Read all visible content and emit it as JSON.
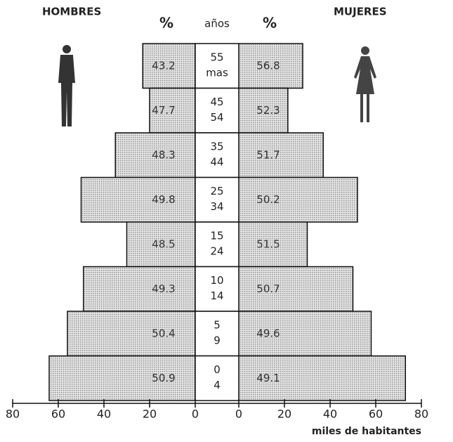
{
  "chart_data": {
    "type": "pyramid",
    "left_title": "HOMBRES",
    "right_title": "MUJERES",
    "percent_header_left": "%",
    "percent_header_right": "%",
    "age_header": "años",
    "xlabel": "miles de habitantes",
    "categories": [
      [
        "55",
        "mas"
      ],
      [
        "45",
        "54"
      ],
      [
        "35",
        "44"
      ],
      [
        "25",
        "34"
      ],
      [
        "15",
        "24"
      ],
      [
        "10",
        "14"
      ],
      [
        "5",
        "9"
      ],
      [
        "0",
        "4"
      ]
    ],
    "series": [
      {
        "name": "HOMBRES",
        "side": "left",
        "color": "#c8c8c8",
        "values": [
          23,
          20,
          35,
          50,
          30,
          49,
          56,
          64
        ],
        "percent": [
          43.2,
          47.7,
          48.3,
          49.8,
          48.5,
          49.3,
          50.4,
          50.9
        ]
      },
      {
        "name": "MUJERES",
        "side": "right",
        "color": "#c8c8c8",
        "values": [
          28,
          21.5,
          37,
          52,
          30,
          50,
          58,
          73
        ],
        "percent": [
          56.8,
          52.3,
          51.7,
          50.2,
          51.5,
          50.7,
          49.6,
          49.1
        ]
      }
    ],
    "xlim": [
      0,
      80
    ],
    "xticks": [
      0,
      20,
      40,
      60,
      80
    ]
  }
}
